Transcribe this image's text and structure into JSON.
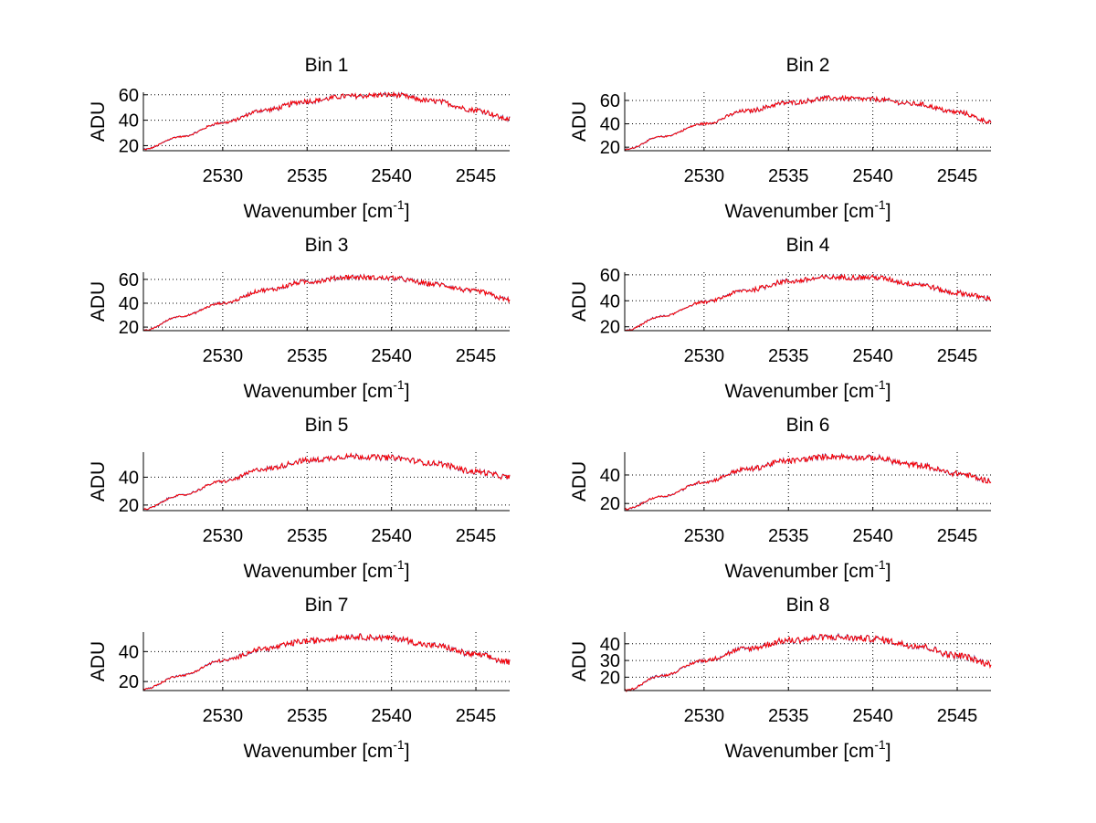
{
  "chart_data": {
    "type": "line",
    "layout": "4x2 subplots",
    "xlabel": {
      "base": "Wavenumber [cm",
      "sup": "-1",
      "close": "]"
    },
    "ylabel": "ADU",
    "xlim": [
      2525.3,
      2547
    ],
    "xticks": [
      "2530",
      "2535",
      "2540",
      "2545"
    ],
    "xtick_values": [
      2530,
      2535,
      2540,
      2545
    ],
    "grid": true,
    "colors": {
      "trace": "#ff0000",
      "under_trace": "#3050c0",
      "grid": "#000000"
    },
    "x": [
      2525.3,
      2527.5,
      2530,
      2532.5,
      2535,
      2537.5,
      2540,
      2542.5,
      2545,
      2547
    ],
    "subplots": [
      {
        "title": "Bin 1",
        "ylim": [
          16,
          62
        ],
        "yticks": [
          "20",
          "40",
          "60"
        ],
        "ytick_values": [
          20,
          40,
          60
        ],
        "values": [
          17,
          27,
          38,
          48,
          55,
          59,
          60,
          55,
          48,
          41
        ]
      },
      {
        "title": "Bin 2",
        "ylim": [
          17,
          67
        ],
        "yticks": [
          "20",
          "40",
          "60"
        ],
        "ytick_values": [
          20,
          40,
          60
        ],
        "values": [
          18,
          29,
          40,
          51,
          58,
          62,
          61,
          57,
          50,
          42
        ]
      },
      {
        "title": "Bin 3",
        "ylim": [
          17,
          66
        ],
        "yticks": [
          "20",
          "40",
          "60"
        ],
        "ytick_values": [
          20,
          40,
          60
        ],
        "values": [
          17,
          29,
          40,
          51,
          58,
          62,
          61,
          56,
          50,
          43
        ]
      },
      {
        "title": "Bin 4",
        "ylim": [
          17,
          62
        ],
        "yticks": [
          "20",
          "40",
          "60"
        ],
        "ytick_values": [
          20,
          40,
          60
        ],
        "values": [
          17,
          28,
          39,
          48,
          55,
          58,
          58,
          53,
          46,
          42
        ]
      },
      {
        "title": "Bin 5",
        "ylim": [
          16,
          58
        ],
        "yticks": [
          "20",
          "40"
        ],
        "ytick_values": [
          20,
          40
        ],
        "values": [
          17,
          27,
          37,
          46,
          52,
          55,
          54,
          50,
          44,
          40
        ]
      },
      {
        "title": "Bin 6",
        "ylim": [
          15,
          56
        ],
        "yticks": [
          "20",
          "40"
        ],
        "ytick_values": [
          20,
          40
        ],
        "values": [
          16,
          25,
          35,
          44,
          50,
          53,
          52,
          47,
          41,
          36
        ]
      },
      {
        "title": "Bin 7",
        "ylim": [
          14,
          53
        ],
        "yticks": [
          "20",
          "40"
        ],
        "ytick_values": [
          20,
          40
        ],
        "values": [
          15,
          24,
          34,
          42,
          47,
          50,
          49,
          44,
          38,
          33
        ]
      },
      {
        "title": "Bin 8",
        "ylim": [
          12,
          47
        ],
        "yticks": [
          "20",
          "30",
          "40"
        ],
        "ytick_values": [
          20,
          30,
          40
        ],
        "values": [
          12,
          21,
          30,
          37,
          42,
          44,
          43,
          39,
          33,
          28
        ]
      }
    ]
  }
}
